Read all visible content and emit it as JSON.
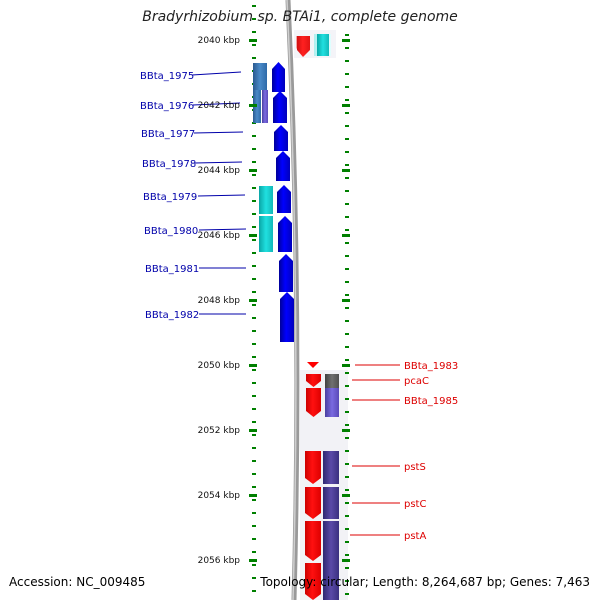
{
  "title": "Bradyrhizobium sp. BTAi1, complete genome",
  "footer": {
    "accession_label": "Accession:",
    "accession_value": "NC_009485",
    "topology_label": "Topology:",
    "topology_value": "circular",
    "length_label": "Length:",
    "length_value": "8,264,687 bp",
    "genes_label": "Genes:",
    "genes_value": "7,463"
  },
  "colors": {
    "left_gene": "#0000ee",
    "left_label": "#0000aa",
    "right_gene": "#ff0000",
    "right_label": "#dd0000",
    "tick": "#008000",
    "backbone": "#888888",
    "cyan_feature": "#1ad6d6",
    "steel_feature": "#3a78b8",
    "purple_feature": "#4a3a90",
    "violet_feature": "#6a5acd",
    "gray_feature": "#606060"
  },
  "scale": {
    "labels": [
      "2040 kbp",
      "2042 kbp",
      "2044 kbp",
      "2046 kbp",
      "2048 kbp",
      "2050 kbp",
      "2052 kbp",
      "2054 kbp",
      "2056 kbp"
    ],
    "start_kbp": 2040,
    "step_kbp": 2
  },
  "left_genes": [
    "BBta_1975",
    "BBta_1976",
    "BBta_1977",
    "BBta_1978",
    "BBta_1979",
    "BBta_1980",
    "BBta_1981",
    "BBta_1982"
  ],
  "right_genes": [
    "BBta_1983",
    "pcaC",
    "BBta_1985",
    "pstS",
    "pstC",
    "pstA"
  ]
}
